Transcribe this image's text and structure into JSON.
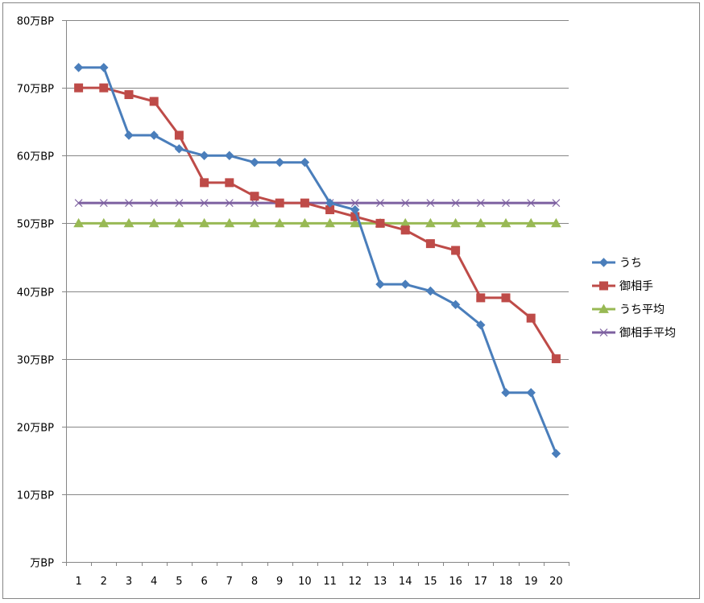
{
  "chart_data": {
    "type": "line",
    "title": "",
    "xlabel": "",
    "ylabel": "",
    "x": [
      1,
      2,
      3,
      4,
      5,
      6,
      7,
      8,
      9,
      10,
      11,
      12,
      13,
      14,
      15,
      16,
      17,
      18,
      19,
      20
    ],
    "x_tick_labels": [
      "1",
      "2",
      "3",
      "4",
      "5",
      "6",
      "7",
      "8",
      "9",
      "10",
      "11",
      "12",
      "13",
      "14",
      "15",
      "16",
      "17",
      "18",
      "19",
      "20"
    ],
    "ylim": [
      0,
      80
    ],
    "y_ticks": [
      0,
      10,
      20,
      30,
      40,
      50,
      60,
      70,
      80
    ],
    "y_tick_labels": [
      "万BP",
      "10万BP",
      "20万BP",
      "30万BP",
      "40万BP",
      "50万BP",
      "60万BP",
      "70万BP",
      "80万BP"
    ],
    "grid": "horizontal",
    "legend_position": "right",
    "series": [
      {
        "name": "うち",
        "color": "#4A7EBB",
        "marker": "diamond",
        "values": [
          73,
          73,
          63,
          63,
          61,
          60,
          60,
          59,
          59,
          59,
          53,
          52,
          41,
          41,
          40,
          38,
          35,
          25,
          25,
          16
        ]
      },
      {
        "name": "御相手",
        "color": "#BE4B48",
        "marker": "square",
        "values": [
          70,
          70,
          69,
          68,
          63,
          56,
          56,
          54,
          53,
          53,
          52,
          51,
          50,
          49,
          47,
          46,
          39,
          39,
          36,
          30
        ]
      },
      {
        "name": "うち平均",
        "color": "#98B954",
        "marker": "triangle",
        "values": [
          50,
          50,
          50,
          50,
          50,
          50,
          50,
          50,
          50,
          50,
          50,
          50,
          50,
          50,
          50,
          50,
          50,
          50,
          50,
          50
        ]
      },
      {
        "name": "御相手平均",
        "color": "#7D60A0",
        "marker": "x",
        "values": [
          53,
          53,
          53,
          53,
          53,
          53,
          53,
          53,
          53,
          53,
          53,
          53,
          53,
          53,
          53,
          53,
          53,
          53,
          53,
          53
        ]
      }
    ]
  }
}
